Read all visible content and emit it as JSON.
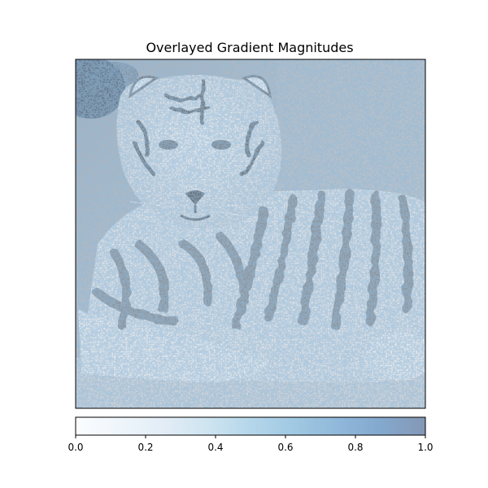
{
  "chart_data": [
    {
      "type": "heatmap",
      "title": "Overlayed Gradient Magnitudes",
      "xlabel": "",
      "ylabel": "",
      "x_ticks": [],
      "y_ticks": [],
      "image": {
        "subject": "tiger lying down, rendered in grayscale",
        "overlay": "gradient magnitudes mapped with a white-to-blue colormap",
        "overlay_alpha": 0.5
      },
      "colorbar": {
        "orientation": "horizontal",
        "position": "bottom",
        "range": [
          0.0,
          1.0
        ],
        "ticks": [
          0.0,
          0.2,
          0.4,
          0.6,
          0.8,
          1.0
        ],
        "tick_labels": [
          "0.0",
          "0.2",
          "0.4",
          "0.6",
          "0.8",
          "1.0"
        ],
        "colors": [
          "#f7fbff",
          "#deebf7",
          "#c6dbef",
          "#9ecae1",
          "#6baed6",
          "#4292c6",
          "#2171b5",
          "#08519c",
          "#08306b"
        ],
        "alpha": 0.5
      }
    }
  ]
}
